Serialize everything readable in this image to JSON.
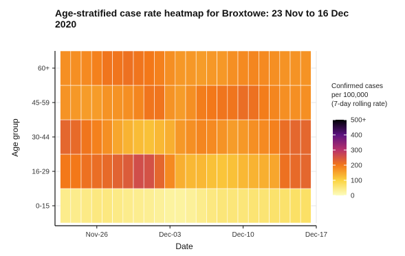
{
  "chart_data": {
    "type": "heatmap",
    "title_lines": [
      "Age-stratified case rate heatmap for Broxtowe: 23 Nov to 16 Dec",
      "2020"
    ],
    "xlabel": "Date",
    "ylabel": "Age group",
    "x_ticks": [
      "Nov-26",
      "Dec-03",
      "Dec-10",
      "Dec-17"
    ],
    "x_dates": [
      "2020-11-23",
      "2020-11-24",
      "2020-11-25",
      "2020-11-26",
      "2020-11-27",
      "2020-11-28",
      "2020-11-29",
      "2020-11-30",
      "2020-12-01",
      "2020-12-02",
      "2020-12-03",
      "2020-12-04",
      "2020-12-05",
      "2020-12-06",
      "2020-12-07",
      "2020-12-08",
      "2020-12-09",
      "2020-12-10",
      "2020-12-11",
      "2020-12-12",
      "2020-12-13",
      "2020-12-14",
      "2020-12-15",
      "2020-12-16"
    ],
    "y_categories": [
      "0-15",
      "16-29",
      "30-44",
      "45-59",
      "60+"
    ],
    "legend": {
      "title_lines": [
        "Confirmed cases",
        "per 100,000",
        "(7-day rolling rate)"
      ],
      "ticks": [
        0,
        100,
        200,
        300,
        400,
        500
      ],
      "tick_labels": [
        "0",
        "100",
        "200",
        "300",
        "400",
        "500+"
      ],
      "range": [
        0,
        500
      ]
    },
    "values": [
      [
        40,
        40,
        45,
        50,
        50,
        45,
        40,
        38,
        35,
        30,
        25,
        25,
        30,
        40,
        50,
        55,
        55,
        55,
        60,
        60,
        65,
        65,
        70,
        70
      ],
      [
        200,
        200,
        210,
        215,
        220,
        230,
        240,
        260,
        255,
        225,
        180,
        140,
        130,
        130,
        120,
        115,
        120,
        130,
        135,
        140,
        150,
        210,
        220,
        225
      ],
      [
        225,
        220,
        205,
        190,
        175,
        150,
        135,
        125,
        120,
        130,
        140,
        165,
        175,
        185,
        180,
        170,
        160,
        165,
        175,
        180,
        190,
        215,
        225,
        225
      ],
      [
        170,
        165,
        160,
        160,
        170,
        170,
        175,
        185,
        205,
        205,
        170,
        160,
        175,
        195,
        200,
        205,
        205,
        215,
        210,
        195,
        185,
        175,
        175,
        175
      ],
      [
        175,
        175,
        180,
        190,
        205,
        205,
        210,
        205,
        200,
        190,
        175,
        165,
        165,
        160,
        165,
        165,
        175,
        180,
        185,
        180,
        175,
        170,
        170,
        170
      ]
    ],
    "x_range": [
      "2020-11-22",
      "2020-12-17"
    ],
    "grid": true,
    "legend_position": "right"
  }
}
